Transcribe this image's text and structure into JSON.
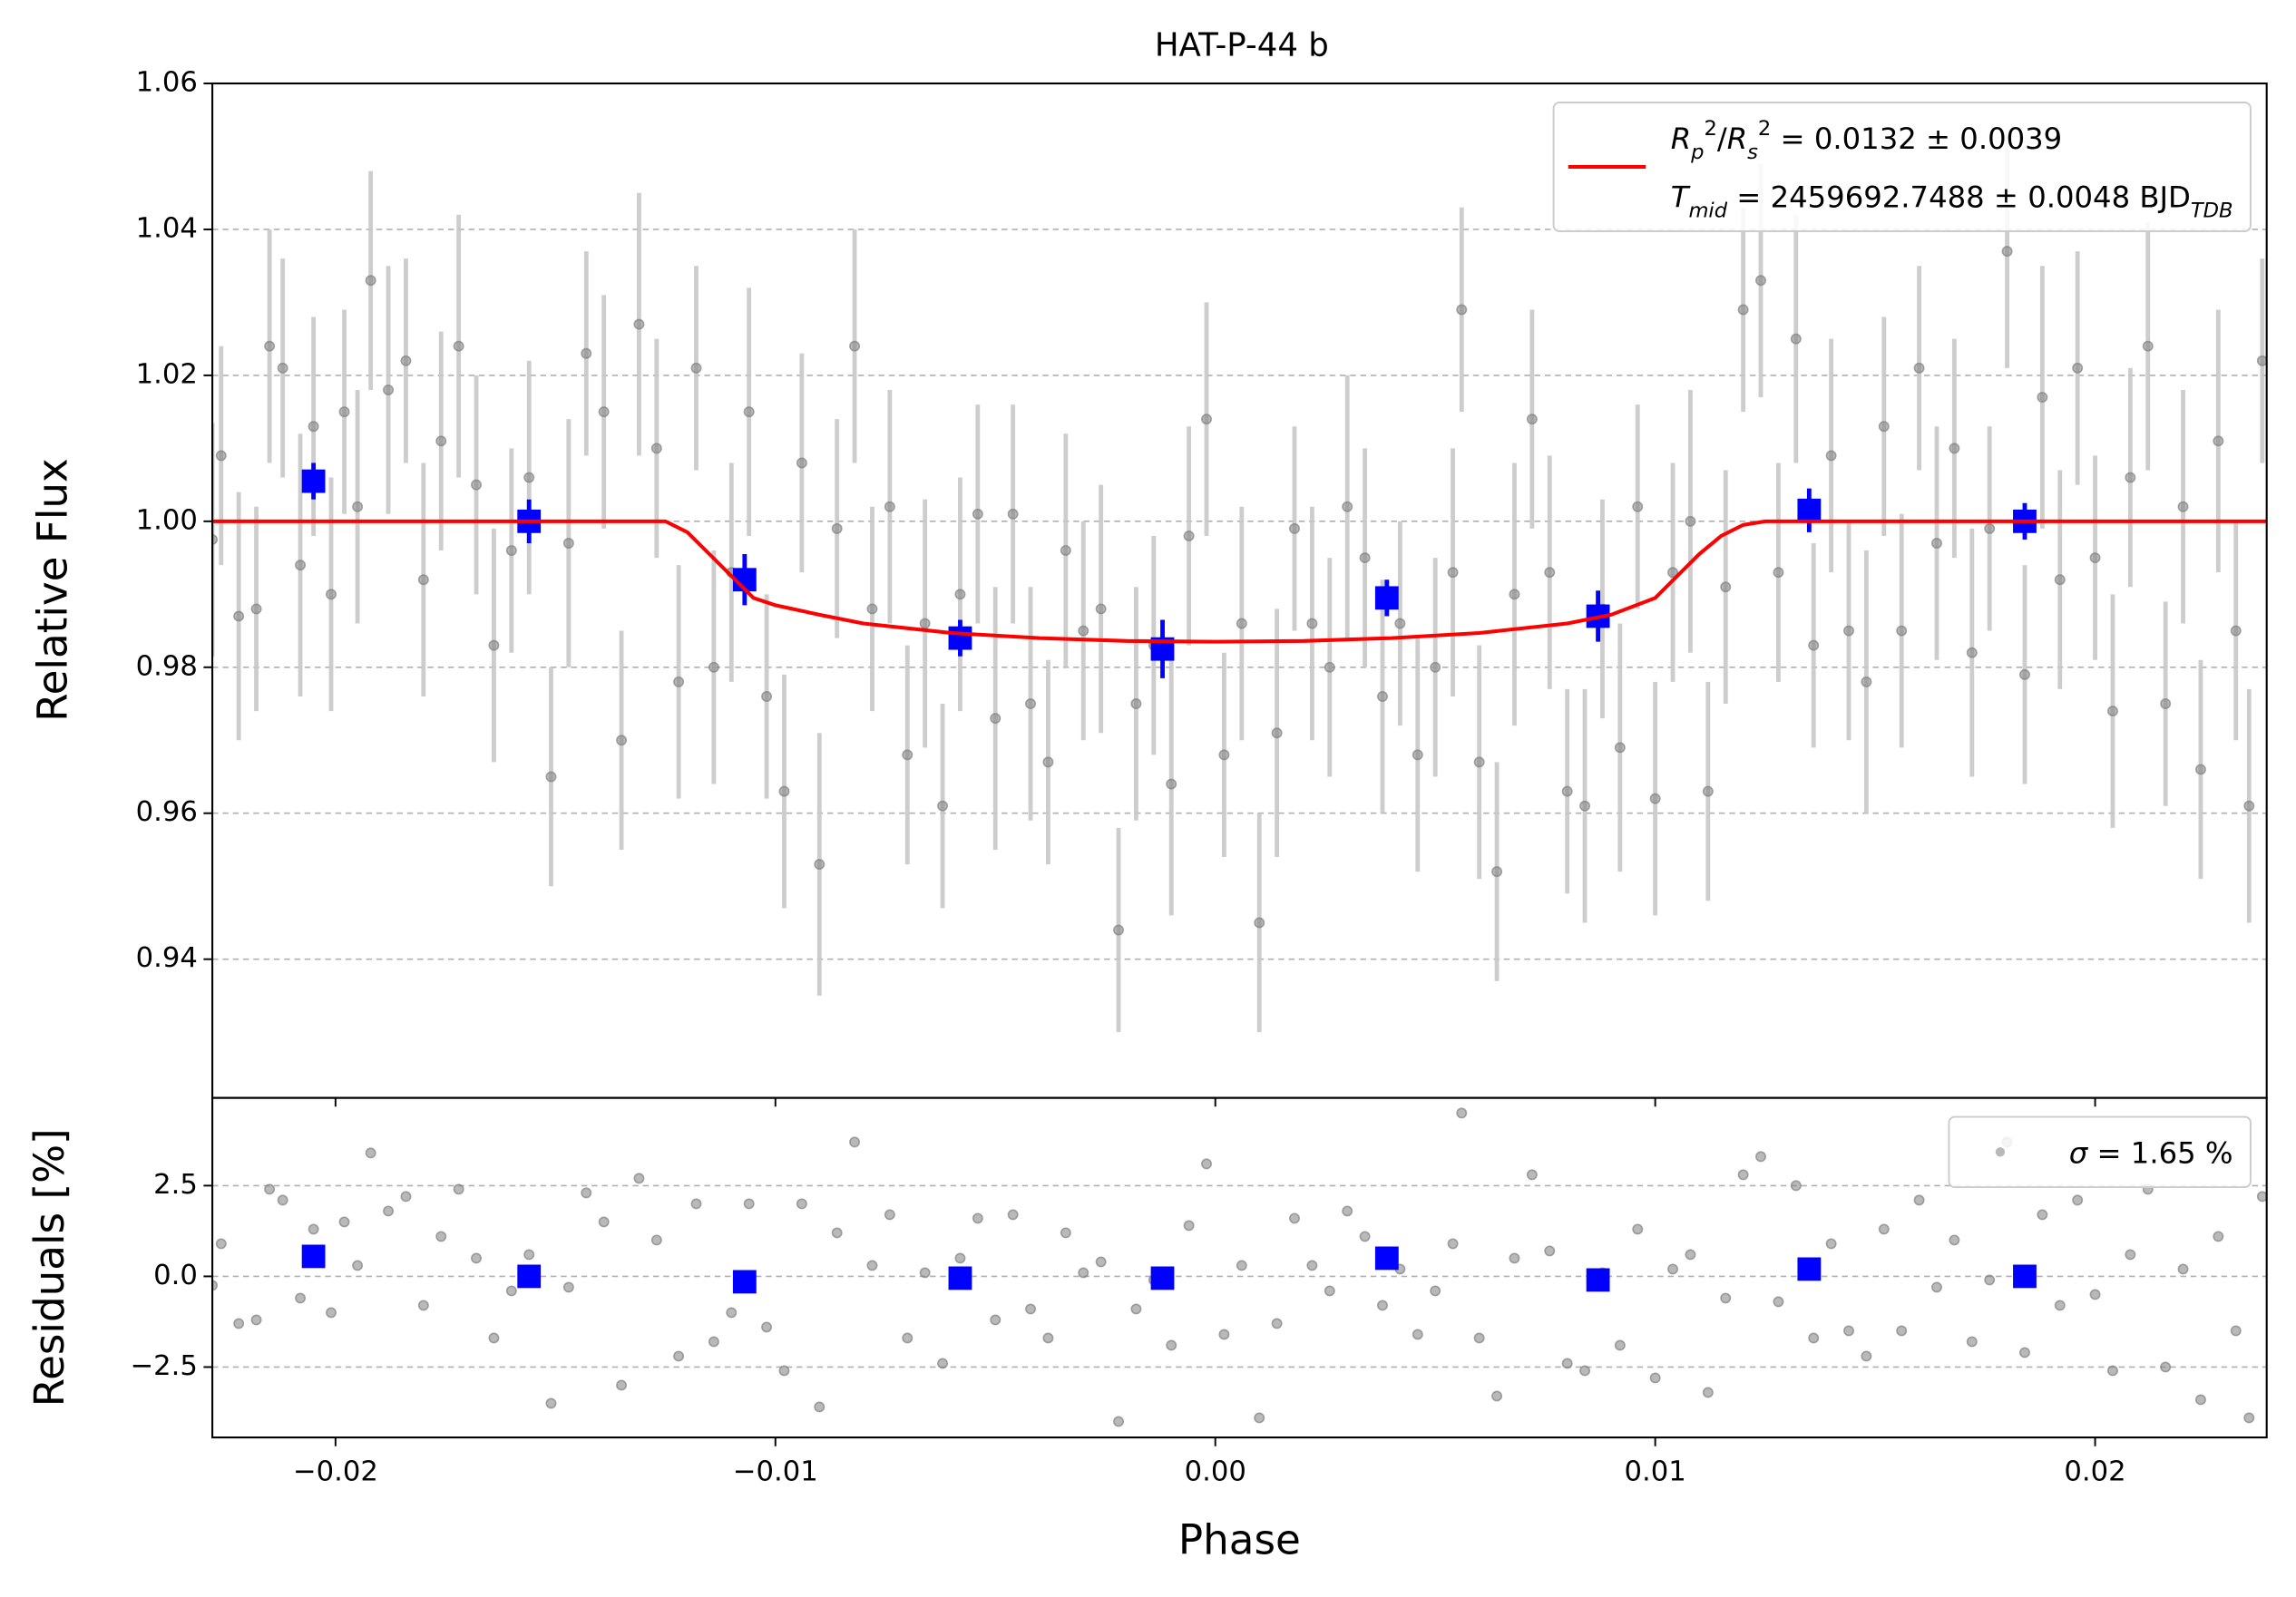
{
  "chart_data": [
    {
      "type": "errorbar",
      "title": "HAT-P-44 b",
      "y_label": "Relative Flux",
      "grid": "y",
      "xlim": [
        -0.0228,
        0.0239
      ],
      "ylim": [
        0.921,
        1.06
      ],
      "xticks": [
        -0.02,
        -0.01,
        0,
        0.01,
        0.02
      ],
      "yticks": [
        0.94,
        0.96,
        0.98,
        {
          "value": 1.0,
          "label": "1.00"
        },
        1.02,
        1.04,
        1.06
      ],
      "legend": "upper right",
      "series": [
        {
          "type": "errorbar",
          "marker": "o",
          "color": "#808080",
          "error_color": "#c8c8c8",
          "x": [
            -0.0228,
            -0.0226,
            -0.0222,
            -0.0218,
            -0.0215,
            -0.0212,
            -0.0208,
            -0.0205,
            -0.0201,
            -0.0198,
            -0.0195,
            -0.0192,
            -0.0188,
            -0.0184,
            -0.018,
            -0.0176,
            -0.0172,
            -0.0168,
            -0.0164,
            -0.016,
            -0.0156,
            -0.0151,
            -0.0147,
            -0.0143,
            -0.0139,
            -0.0135,
            -0.0131,
            -0.0127,
            -0.0122,
            -0.0118,
            -0.0114,
            -0.011,
            -0.0106,
            -0.0102,
            -0.0098,
            -0.0094,
            -0.009,
            -0.0086,
            -0.0082,
            -0.0078,
            -0.0074,
            -0.007,
            -0.0066,
            -0.0062,
            -0.0058,
            -0.0054,
            -0.005,
            -0.0046,
            -0.0042,
            -0.0038,
            -0.0034,
            -0.003,
            -0.0026,
            -0.0022,
            -0.0018,
            -0.0014,
            -0.001,
            -0.0006,
            -0.0002,
            0.0002,
            0.0006,
            0.001,
            0.0014,
            0.0018,
            0.0022,
            0.0026,
            0.003,
            0.0034,
            0.0038,
            0.0042,
            0.0046,
            0.005,
            0.0054,
            0.0056,
            0.006,
            0.0064,
            0.0068,
            0.0072,
            0.0076,
            0.008,
            0.0084,
            0.0088,
            0.0092,
            0.0096,
            0.01,
            0.0104,
            0.0108,
            0.0112,
            0.0116,
            0.012,
            0.0124,
            0.0128,
            0.0132,
            0.0136,
            0.014,
            0.0144,
            0.0148,
            0.0152,
            0.0156,
            0.016,
            0.0164,
            0.0168,
            0.0172,
            0.0176,
            0.018,
            0.0184,
            0.0188,
            0.0192,
            0.0196,
            0.02,
            0.0204,
            0.0208,
            0.0212,
            0.0216,
            0.022,
            0.0224,
            0.0228,
            0.0232,
            0.0235,
            0.0238
          ],
          "values": [
            0.9975,
            1.009,
            0.987,
            0.988,
            1.024,
            1.021,
            0.994,
            1.013,
            0.99,
            1.015,
            1.002,
            1.033,
            1.018,
            1.022,
            0.992,
            1.011,
            1.024,
            1.005,
            0.983,
            0.996,
            1.006,
            0.965,
            0.997,
            1.023,
            1.015,
            0.97,
            1.027,
            1.01,
            0.978,
            1.021,
            0.98,
            0.993,
            1.015,
            0.976,
            0.963,
            1.008,
            0.953,
            0.999,
            1.024,
            0.988,
            1.002,
            0.968,
            0.986,
            0.961,
            0.99,
            1.001,
            0.973,
            1.001,
            0.975,
            0.967,
            0.996,
            0.985,
            0.988,
            0.944,
            0.975,
            0.983,
            0.964,
            0.998,
            1.014,
            0.968,
            0.986,
            0.945,
            0.971,
            0.999,
            0.986,
            0.98,
            1.002,
            0.995,
            0.976,
            0.986,
            0.968,
            0.98,
            0.993,
            1.029,
            0.967,
            0.952,
            0.99,
            1.014,
            0.993,
            0.963,
            0.961,
            0.988,
            0.969,
            1.002,
            0.962,
            0.993,
            1.0,
            0.963,
            0.991,
            1.029,
            1.033,
            0.993,
            1.025,
            0.983,
            1.009,
            0.985,
            0.978,
            1.013,
            0.985,
            1.021,
            0.997,
            1.01,
            0.982,
            0.999,
            1.037,
            0.979,
            1.017,
            0.992,
            1.021,
            0.995,
            0.974,
            1.006,
            1.024,
            0.975,
            1.002,
            0.966,
            1.011,
            0.985,
            0.961,
            1.022
          ],
          "errors": [
            0.016,
            0.015,
            0.017,
            0.014,
            0.016,
            0.015,
            0.018,
            0.015,
            0.016,
            0.014,
            0.016,
            0.015,
            0.017,
            0.014,
            0.016,
            0.015,
            0.018,
            0.015,
            0.016,
            0.014,
            0.016,
            0.015,
            0.017,
            0.014,
            0.016,
            0.015,
            0.018,
            0.015,
            0.016,
            0.014,
            0.016,
            0.015,
            0.017,
            0.014,
            0.016,
            0.015,
            0.018,
            0.015,
            0.016,
            0.014,
            0.016,
            0.015,
            0.017,
            0.014,
            0.016,
            0.015,
            0.018,
            0.015,
            0.016,
            0.014,
            0.016,
            0.015,
            0.017,
            0.014,
            0.016,
            0.015,
            0.018,
            0.015,
            0.016,
            0.014,
            0.016,
            0.015,
            0.017,
            0.014,
            0.016,
            0.015,
            0.018,
            0.015,
            0.016,
            0.014,
            0.016,
            0.015,
            0.017,
            0.014,
            0.016,
            0.015,
            0.018,
            0.015,
            0.016,
            0.014,
            0.016,
            0.015,
            0.017,
            0.014,
            0.016,
            0.015,
            0.018,
            0.015,
            0.016,
            0.014,
            0.016,
            0.015,
            0.017,
            0.014,
            0.016,
            0.015,
            0.018,
            0.015,
            0.016,
            0.014,
            0.016,
            0.015,
            0.017,
            0.014,
            0.016,
            0.015,
            0.018,
            0.015,
            0.016,
            0.014,
            0.016,
            0.015,
            0.017,
            0.014,
            0.016,
            0.015,
            0.018,
            0.015,
            0.016,
            0.014
          ]
        },
        {
          "type": "errorbar",
          "marker": "s",
          "color": "#0000ff",
          "error_color": "#0000ff",
          "x": [
            -0.0205,
            -0.0156,
            -0.0107,
            -0.0058,
            -0.0012,
            0.0039,
            0.0087,
            0.0135,
            0.0184
          ],
          "values": [
            1.0055,
            1.0,
            0.992,
            0.984,
            0.9825,
            0.9895,
            0.987,
            1.0015,
            1.0
          ],
          "errors": [
            0.0025,
            0.003,
            0.0035,
            0.0025,
            0.004,
            0.0025,
            0.0035,
            0.003,
            0.0025
          ]
        },
        {
          "type": "line",
          "color": "#ff0000",
          "x": [
            -0.0228,
            -0.0125,
            -0.012,
            -0.0115,
            -0.011,
            -0.0105,
            -0.01,
            -0.009,
            -0.008,
            -0.006,
            -0.004,
            -0.002,
            0.0,
            0.002,
            0.004,
            0.006,
            0.008,
            0.009,
            0.01,
            0.0105,
            0.011,
            0.0115,
            0.012,
            0.0125,
            0.0239
          ],
          "values": [
            1,
            1,
            0.9985,
            0.9955,
            0.9925,
            0.9895,
            0.9885,
            0.9872,
            0.986,
            0.9847,
            0.984,
            0.9836,
            0.9835,
            0.9836,
            0.984,
            0.9847,
            0.986,
            0.9872,
            0.9895,
            0.9925,
            0.9955,
            0.998,
            0.9995,
            1,
            1
          ],
          "name": [
            [
              {
                "text": "R",
                "italic": true
              },
              {
                "text": "p",
                "italic": true,
                "shift": "sub"
              },
              {
                "text": "2",
                "shift": "super"
              },
              {
                "text": "/"
              },
              {
                "text": "R",
                "italic": true
              },
              {
                "text": "s",
                "italic": true,
                "shift": "sub"
              },
              {
                "text": "2",
                "shift": "super"
              },
              {
                "text": " = 0.0132 ± 0.0039"
              }
            ],
            [
              {
                "text": "T",
                "italic": true
              },
              {
                "text": "mid",
                "italic": true,
                "shift": "sub"
              },
              {
                "text": " = 2459692.7488 ± 0.0048 BJD"
              },
              {
                "text": "TDB",
                "italic": true,
                "shift": "sub"
              }
            ]
          ]
        }
      ]
    },
    {
      "type": "scatter",
      "x_label": "Phase",
      "y_label": "Residuals [%]",
      "grid": "y",
      "xlim": [
        -0.0228,
        0.0239
      ],
      "ylim": [
        -4.44,
        4.92
      ],
      "xticks": [
        {
          "value": -0.02,
          "label": "−0.02"
        },
        {
          "value": -0.01,
          "label": "−0.01"
        },
        {
          "value": 0,
          "label": "0.00"
        },
        0.01,
        0.02
      ],
      "yticks": [
        2.5,
        {
          "value": 0,
          "label": "0.0"
        },
        {
          "value": -2.5,
          "label": "−2.5"
        }
      ],
      "legend": "upper right",
      "series": [
        {
          "type": "scatter",
          "marker": "o",
          "color": "#808080",
          "name": [
            [
              {
                "text": "σ",
                "italic": true
              },
              {
                "text": " = 1.65 %"
              }
            ]
          ],
          "x": [
            -0.0228,
            -0.0226,
            -0.0222,
            -0.0218,
            -0.0215,
            -0.0212,
            -0.0208,
            -0.0205,
            -0.0201,
            -0.0198,
            -0.0195,
            -0.0192,
            -0.0188,
            -0.0184,
            -0.018,
            -0.0176,
            -0.0172,
            -0.0168,
            -0.0164,
            -0.016,
            -0.0156,
            -0.0151,
            -0.0147,
            -0.0143,
            -0.0139,
            -0.0135,
            -0.0131,
            -0.0127,
            -0.0122,
            -0.0118,
            -0.0114,
            -0.011,
            -0.0106,
            -0.0102,
            -0.0098,
            -0.0094,
            -0.009,
            -0.0086,
            -0.0082,
            -0.0078,
            -0.0074,
            -0.007,
            -0.0066,
            -0.0062,
            -0.0058,
            -0.0054,
            -0.005,
            -0.0046,
            -0.0042,
            -0.0038,
            -0.0034,
            -0.003,
            -0.0026,
            -0.0022,
            -0.0018,
            -0.0014,
            -0.001,
            -0.0006,
            -0.0002,
            0.0002,
            0.0006,
            0.001,
            0.0014,
            0.0018,
            0.0022,
            0.0026,
            0.003,
            0.0034,
            0.0038,
            0.0042,
            0.0046,
            0.005,
            0.0054,
            0.0056,
            0.006,
            0.0064,
            0.0068,
            0.0072,
            0.0076,
            0.008,
            0.0084,
            0.0088,
            0.0092,
            0.0096,
            0.01,
            0.0104,
            0.0108,
            0.0112,
            0.0116,
            0.012,
            0.0124,
            0.0128,
            0.0132,
            0.0136,
            0.014,
            0.0144,
            0.0148,
            0.0152,
            0.0156,
            0.016,
            0.0164,
            0.0168,
            0.0172,
            0.0176,
            0.018,
            0.0184,
            0.0188,
            0.0192,
            0.0196,
            0.02,
            0.0204,
            0.0208,
            0.0212,
            0.0216,
            0.022,
            0.0224,
            0.0228,
            0.0232,
            0.0235,
            0.0238
          ],
          "values": [
            -0.25,
            0.9,
            -1.3,
            -1.2,
            2.4,
            2.1,
            -0.6,
            1.3,
            -1.0,
            1.5,
            0.3,
            3.4,
            1.8,
            2.2,
            -0.8,
            1.1,
            2.4,
            0.5,
            -1.7,
            -0.4,
            0.6,
            -3.5,
            -0.3,
            2.3,
            1.5,
            -3.0,
            2.7,
            1.0,
            -2.2,
            2.0,
            -1.8,
            -1.0,
            2.0,
            -1.4,
            -2.6,
            2.0,
            -3.6,
            1.2,
            3.7,
            0.3,
            1.7,
            -1.7,
            0.1,
            -2.4,
            0.5,
            1.6,
            -1.2,
            1.7,
            -0.9,
            -1.7,
            1.2,
            0.1,
            0.4,
            -4.0,
            -0.9,
            -0.1,
            -1.9,
            1.4,
            3.1,
            -1.6,
            0.3,
            -3.9,
            -1.3,
            1.6,
            0.3,
            -0.4,
            1.8,
            1.1,
            -0.8,
            0.2,
            -1.6,
            -0.4,
            0.9,
            4.5,
            -1.7,
            -3.3,
            0.5,
            2.8,
            0.7,
            -2.4,
            -2.6,
            0.1,
            -1.9,
            1.3,
            -2.8,
            0.2,
            0.6,
            -3.2,
            -0.6,
            2.8,
            3.3,
            -0.7,
            2.5,
            -1.7,
            0.9,
            -1.5,
            -2.2,
            1.3,
            -1.5,
            2.1,
            -0.3,
            1.0,
            -1.8,
            -0.1,
            3.7,
            -2.1,
            1.7,
            -0.8,
            2.1,
            -0.5,
            -2.6,
            0.6,
            2.4,
            -2.5,
            0.2,
            -3.4,
            1.1,
            -1.5,
            -3.9,
            2.2
          ]
        },
        {
          "type": "scatter",
          "marker": "s",
          "color": "#0000ff",
          "x": [
            -0.0205,
            -0.0156,
            -0.0107,
            -0.0058,
            -0.0012,
            0.0039,
            0.0087,
            0.0135,
            0.0184
          ],
          "values": [
            0.55,
            0.0,
            -0.15,
            -0.05,
            -0.05,
            0.5,
            -0.1,
            0.2,
            0.0
          ]
        }
      ]
    }
  ]
}
